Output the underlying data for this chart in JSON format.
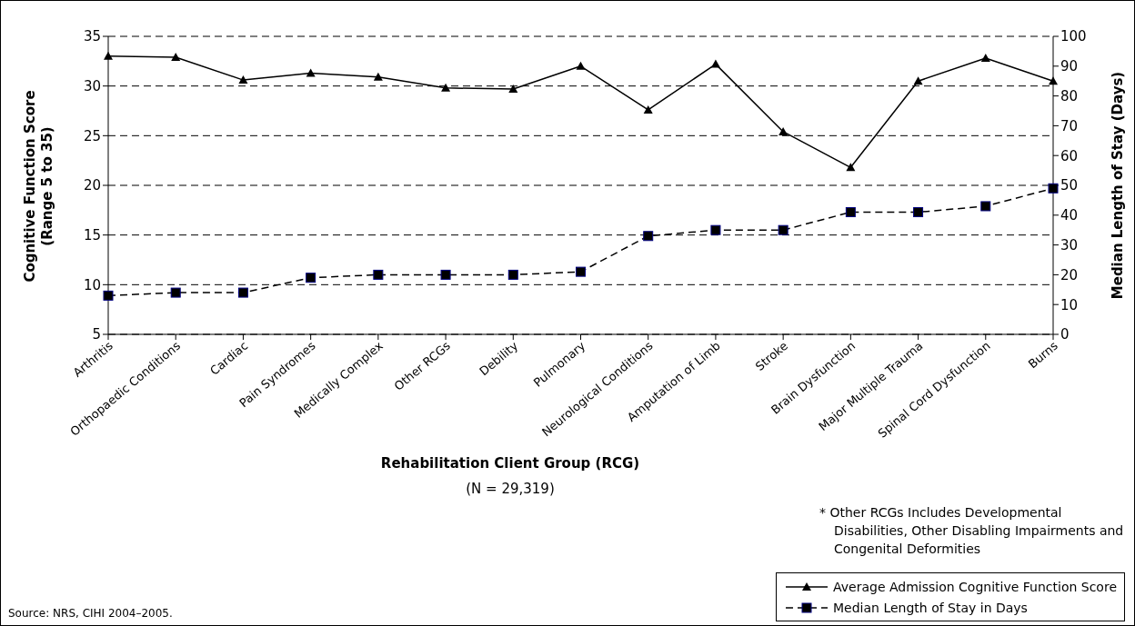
{
  "chart_data": {
    "type": "line",
    "xlabel": "Rehabilitation Client Group (RCG)",
    "ylabel": "Cognitive Function Score (Range 5 to 35)",
    "y2label": "Median Length of Stay (Days)",
    "categories": [
      "Arthritis",
      "Orthopaedic Conditions",
      "Cardiac",
      "Pain Syndromes",
      "Medically Complex",
      "Other RCGs",
      "Debility",
      "Pulmonary",
      "Neurological Conditions",
      "Amputation of Limb",
      "Stroke",
      "Brain Dysfunction",
      "Major Multiple Trauma",
      "Spinal Cord Dysfunction",
      "Burns"
    ],
    "series": [
      {
        "name": "Average Admission Cognitive Function Score",
        "color": "#000000",
        "marker": "triangle",
        "line_style": "solid",
        "values": [
          33.0,
          32.9,
          30.6,
          31.3,
          30.9,
          29.8,
          29.7,
          32.0,
          27.6,
          32.2,
          25.4,
          21.8,
          30.5,
          32.8,
          30.5
        ]
      },
      {
        "name": "Median Length of Stay in Days",
        "color": "#000000",
        "marker": "square",
        "line_style": "dashed",
        "axis": "y2",
        "values": [
          13,
          14,
          14,
          19,
          20,
          20,
          20,
          21,
          33,
          35,
          35,
          41,
          41,
          43,
          49
        ]
      }
    ],
    "ylim": [
      5,
      35
    ],
    "yticks": [
      5,
      10,
      15,
      20,
      25,
      30,
      35
    ],
    "y2lim": [
      0,
      100
    ],
    "y2ticks": [
      0,
      10,
      20,
      30,
      40,
      50,
      60,
      70,
      80,
      90,
      100
    ],
    "grid": "y",
    "legend": "bottom right",
    "annotations": [
      "(N = 29,319)",
      "* Other RCGs Includes Developmental Disabilities, Other Disabling Impairments and Congenital Deformities",
      "Source: NRS, CIHI 2004–2005."
    ]
  }
}
